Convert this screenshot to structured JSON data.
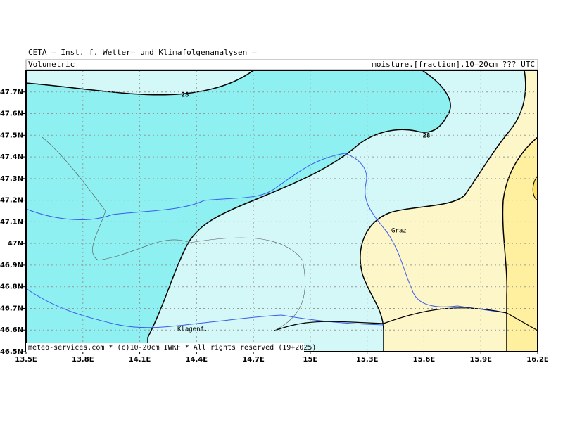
{
  "header": {
    "title": "CETA – Inst. f. Wetter– und Klimafolgenanalysen –",
    "left": "Volumetric",
    "right": "moisture.[fraction].10–20cm ??? UTC"
  },
  "map": {
    "xlim": [
      13.5,
      16.2
    ],
    "ylim": [
      46.5,
      47.8
    ],
    "xticks": [
      {
        "value": 13.5,
        "label": "13.5E"
      },
      {
        "value": 13.8,
        "label": "13.8E"
      },
      {
        "value": 14.1,
        "label": "14.1E"
      },
      {
        "value": 14.4,
        "label": "14.4E"
      },
      {
        "value": 14.7,
        "label": "14.7E"
      },
      {
        "value": 15,
        "label": "15E"
      },
      {
        "value": 15.3,
        "label": "15.3E"
      },
      {
        "value": 15.6,
        "label": "15.6E"
      },
      {
        "value": 15.9,
        "label": "15.9E"
      },
      {
        "value": 16.2,
        "label": "16.2E"
      }
    ],
    "yticks": [
      {
        "value": 46.5,
        "label": "46.5N"
      },
      {
        "value": 46.6,
        "label": "46.6N"
      },
      {
        "value": 46.7,
        "label": "46.7N"
      },
      {
        "value": 46.8,
        "label": "46.8N"
      },
      {
        "value": 46.9,
        "label": "46.9N"
      },
      {
        "value": 47,
        "label": "47N"
      },
      {
        "value": 47.1,
        "label": "47.1N"
      },
      {
        "value": 47.2,
        "label": "47.2N"
      },
      {
        "value": 47.3,
        "label": "47.3N"
      },
      {
        "value": 47.4,
        "label": "47.4N"
      },
      {
        "value": 47.5,
        "label": "47.5N"
      },
      {
        "value": 47.6,
        "label": "47.6N"
      },
      {
        "value": 47.7,
        "label": "47.7N"
      }
    ],
    "contour_labels": [
      "28",
      "28"
    ],
    "places": [
      "Graz",
      "Klagenf."
    ],
    "footer": "meteo-services.com * (c)10-20cm IWKF * All rights reserved (19+2025)"
  }
}
